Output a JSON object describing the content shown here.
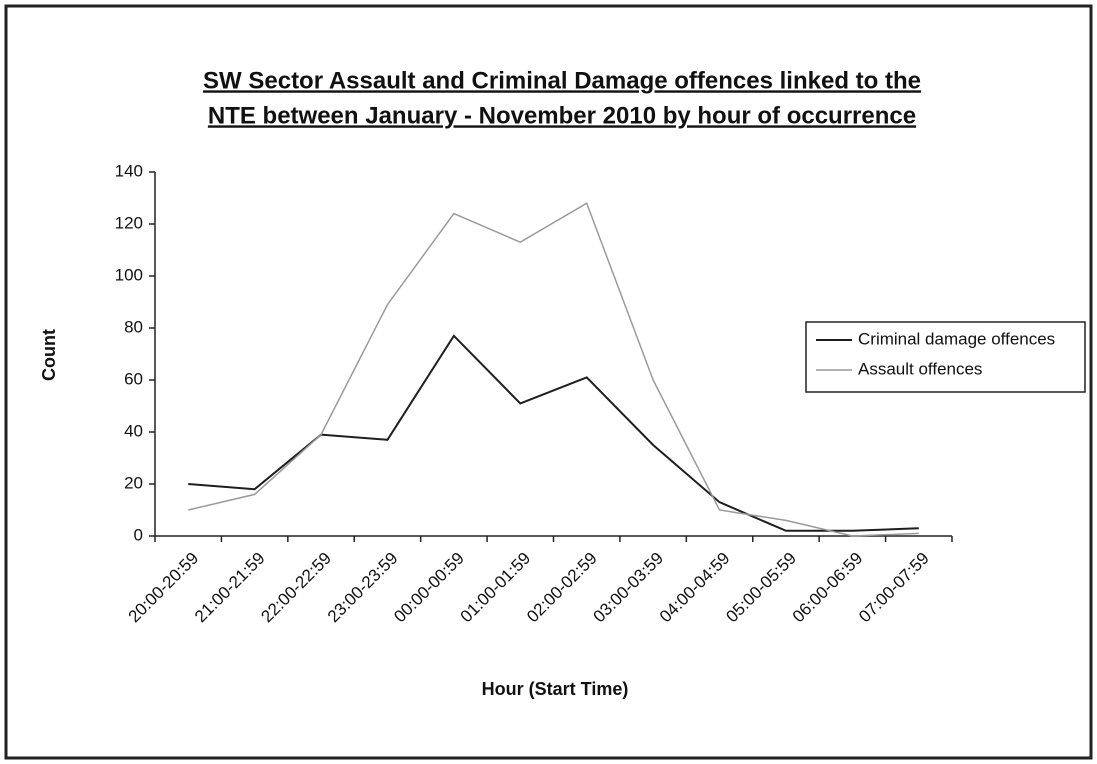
{
  "chart_data": {
    "type": "line",
    "title": [
      "SW Sector Assault and Criminal Damage offences linked to the",
      "NTE between January - November 2010 by hour of occurrence"
    ],
    "x_label": "Hour (Start Time)",
    "y_label": "Count",
    "categories": [
      "20:00-20:59",
      "21:00-21:59",
      "22:00-22:59",
      "23:00-23:59",
      "00:00-00:59",
      "01:00-01:59",
      "02:00-02:59",
      "03:00-03:59",
      "04:00-04:59",
      "05:00-05:59",
      "06:00-06:59",
      "07:00-07:59"
    ],
    "series": [
      {
        "name": "Criminal damage offences",
        "color": "#1e1e1e",
        "values": [
          20,
          18,
          39,
          37,
          77,
          51,
          61,
          35,
          13,
          2,
          2,
          3
        ]
      },
      {
        "name": "Assault offences",
        "color": "#9a9a9a",
        "values": [
          10,
          16,
          39,
          89,
          124,
          113,
          128,
          60,
          10,
          6,
          0,
          1
        ]
      }
    ],
    "ylim": [
      0,
      140
    ],
    "yticks": [
      0,
      20,
      40,
      60,
      80,
      100,
      120,
      140
    ],
    "grid": false,
    "legend": "right"
  }
}
